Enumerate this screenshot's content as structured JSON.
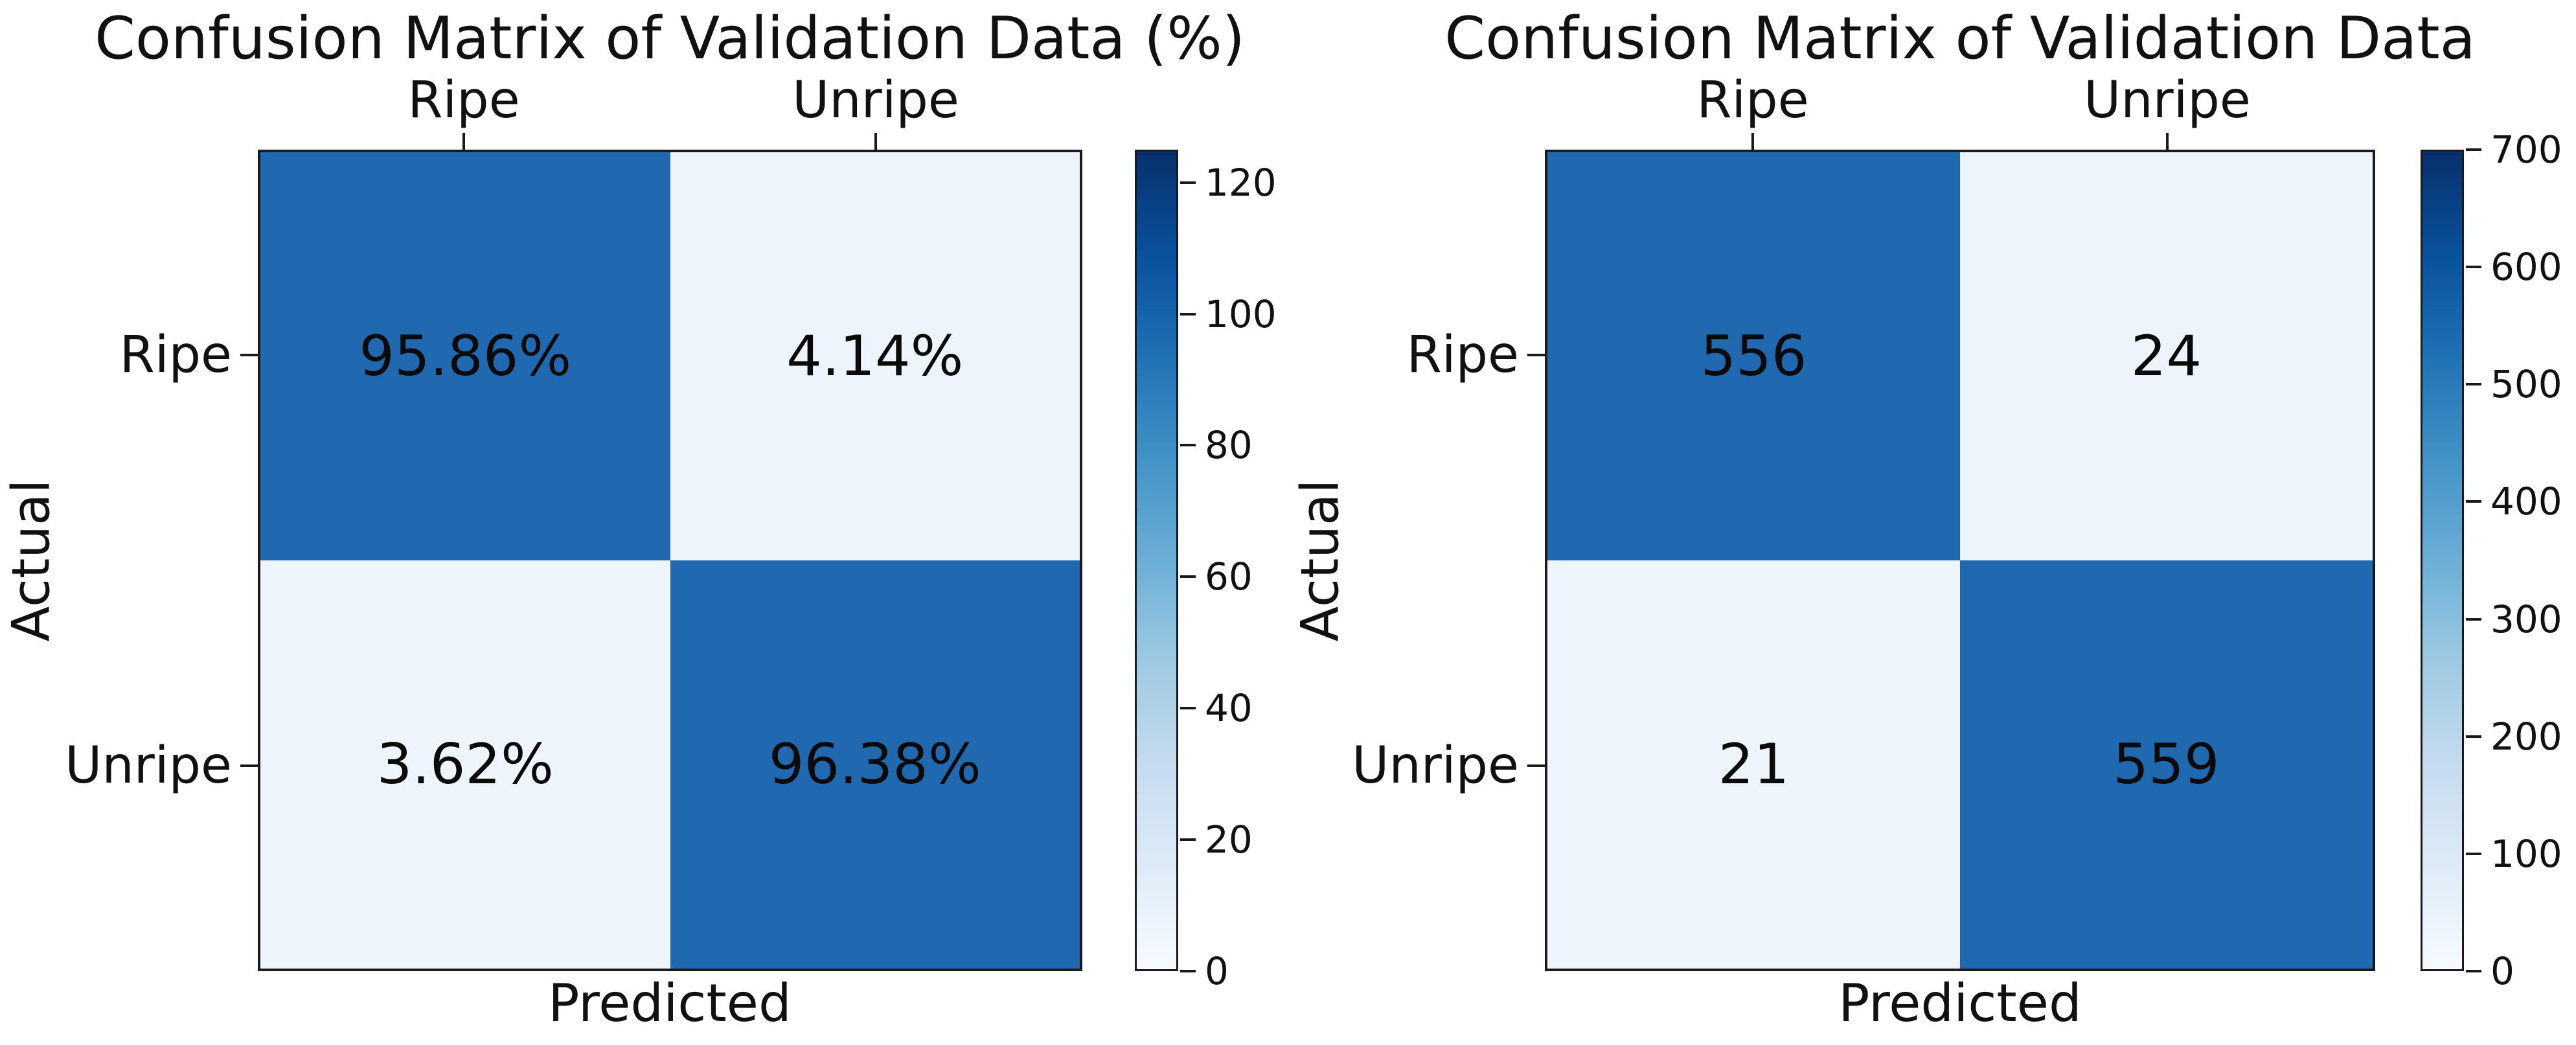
{
  "colors": {
    "background": "#ffffff",
    "text": "#111111",
    "axis": "#1a1a1a",
    "cell_high_blue": "#2069b0",
    "cell_low_blue": "#eef4fb",
    "colormap_stops": [
      "#f7fbff",
      "#deebf7",
      "#c6dbef",
      "#9ecae1",
      "#6baed6",
      "#4292c6",
      "#2171b5",
      "#08519c",
      "#08306b"
    ]
  },
  "chart_data": [
    {
      "type": "heatmap",
      "title": "Confusion Matrix of Validation Data (%)",
      "xlabel": "Predicted",
      "ylabel": "Actual",
      "x_ticklabels": [
        "Ripe",
        "Unripe"
      ],
      "y_ticklabels": [
        "Ripe",
        "Unripe"
      ],
      "values": [
        [
          95.86,
          4.14
        ],
        [
          3.62,
          96.38
        ]
      ],
      "cell_labels": [
        [
          "95.86%",
          "4.14%"
        ],
        [
          "3.62%",
          "96.38%"
        ]
      ],
      "cell_colors": [
        [
          "#2069b0",
          "#eef4fb"
        ],
        [
          "#eff5fc",
          "#2069b0"
        ]
      ],
      "colormap": "Blues",
      "grid": false,
      "colorbar": {
        "vmin": 0,
        "vmax": 125,
        "ticks": [
          0,
          20,
          40,
          60,
          80,
          100,
          120
        ]
      }
    },
    {
      "type": "heatmap",
      "title": "Confusion Matrix of Validation Data",
      "xlabel": "Predicted",
      "ylabel": "Actual",
      "x_ticklabels": [
        "Ripe",
        "Unripe"
      ],
      "y_ticklabels": [
        "Ripe",
        "Unripe"
      ],
      "values": [
        [
          556,
          24
        ],
        [
          21,
          559
        ]
      ],
      "cell_labels": [
        [
          "556",
          "24"
        ],
        [
          "21",
          "559"
        ]
      ],
      "cell_colors": [
        [
          "#2069b0",
          "#eef4fb"
        ],
        [
          "#eff5fc",
          "#2069b0"
        ]
      ],
      "colormap": "Blues",
      "grid": false,
      "colorbar": {
        "vmin": 0,
        "vmax": 700,
        "ticks": [
          0,
          100,
          200,
          300,
          400,
          500,
          600,
          700
        ]
      }
    }
  ]
}
